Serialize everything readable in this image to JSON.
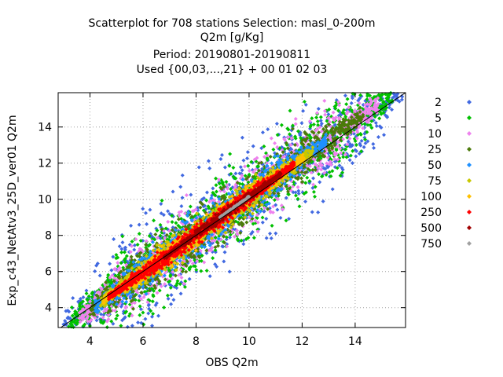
{
  "chart_data": {
    "type": "scatter",
    "title": [
      "Scatterplot for  708 stations Selection: masl_0-200m",
      "Q2m [g/Kg]",
      "Period: 20190801-20190811",
      "Used {00,03,...,21} + 00 01 02 03"
    ],
    "xlabel": "OBS Q2m",
    "ylabel": "Exp_c43_NetAtv3_25D_ver01 Q2m",
    "xlim": [
      2.8,
      15.9
    ],
    "ylim": [
      2.9,
      15.9
    ],
    "xticks": [
      4,
      6,
      8,
      10,
      12,
      14
    ],
    "yticks": [
      4,
      6,
      8,
      10,
      12,
      14
    ],
    "grid": true,
    "diagonal_line": true,
    "legend_position": "right",
    "legend": [
      {
        "label": "2",
        "color": "#4169e1"
      },
      {
        "label": "5",
        "color": "#00c000"
      },
      {
        "label": "10",
        "color": "#ee82ee"
      },
      {
        "label": "25",
        "color": "#4b7a0a"
      },
      {
        "label": "50",
        "color": "#1e90ff"
      },
      {
        "label": "75",
        "color": "#c8c800"
      },
      {
        "label": "100",
        "color": "#ffc000"
      },
      {
        "label": "250",
        "color": "#ff0000"
      },
      {
        "label": "500",
        "color": "#a00000"
      },
      {
        "label": "750",
        "color": "#a0a0a0"
      }
    ],
    "density_bands": [
      {
        "label": "2",
        "color": "#4169e1",
        "x_range": [
          3.0,
          15.8
        ],
        "spread": 2.6
      },
      {
        "label": "5",
        "color": "#00c000",
        "x_range": [
          3.2,
          15.4
        ],
        "spread": 2.0
      },
      {
        "label": "10",
        "color": "#ee82ee",
        "x_range": [
          3.6,
          14.9
        ],
        "spread": 1.55
      },
      {
        "label": "25",
        "color": "#4b7a0a",
        "x_range": [
          4.0,
          14.3
        ],
        "spread": 1.2
      },
      {
        "label": "50",
        "color": "#1e90ff",
        "x_range": [
          4.2,
          12.9
        ],
        "spread": 0.95
      },
      {
        "label": "75",
        "color": "#c8c800",
        "x_range": [
          4.4,
          12.4
        ],
        "spread": 0.75
      },
      {
        "label": "100",
        "color": "#ffc000",
        "x_range": [
          4.5,
          12.1
        ],
        "spread": 0.6
      },
      {
        "label": "250",
        "color": "#ff0000",
        "x_range": [
          4.7,
          11.7
        ],
        "spread": 0.45
      },
      {
        "label": "500",
        "color": "#a00000",
        "x_range": [
          6.8,
          11.2
        ],
        "spread": 0.25
      },
      {
        "label": "750",
        "color": "#a0a0a0",
        "x_range": [
          8.9,
          10.0
        ],
        "spread": 0.1
      }
    ]
  }
}
